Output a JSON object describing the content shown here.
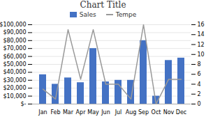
{
  "chart_data": {
    "type": "bar",
    "title": "Chart Title",
    "categories": [
      "Jan",
      "Feb",
      "Mar",
      "Apr",
      "May",
      "Jun",
      "Jul",
      "Aug",
      "Sep",
      "Oct",
      "Nov",
      "Dec"
    ],
    "series": [
      {
        "name": "Sales",
        "type": "bar",
        "color": "#4472C4",
        "values": [
          37000,
          25000,
          33000,
          27000,
          70000,
          28000,
          30000,
          30000,
          80000,
          10000,
          55000,
          58000
        ]
      },
      {
        "name": "Tempe",
        "type": "line",
        "color": "#999999",
        "axis": "y2",
        "values": [
          3,
          1,
          15,
          5,
          15,
          4,
          4,
          1,
          16,
          0,
          5,
          5
        ]
      }
    ],
    "ylim": [
      0,
      100000
    ],
    "yticks": [
      {
        "value": 0,
        "label": "$-"
      },
      {
        "value": 10000,
        "label": "$10,000"
      },
      {
        "value": 20000,
        "label": "$20,000"
      },
      {
        "value": 30000,
        "label": "$30,000"
      },
      {
        "value": 40000,
        "label": "$40,000"
      },
      {
        "value": 50000,
        "label": "$50,000"
      },
      {
        "value": 60000,
        "label": "$60,000"
      },
      {
        "value": 70000,
        "label": "$70,000"
      },
      {
        "value": 80000,
        "label": "$80,000"
      },
      {
        "value": 90000,
        "label": "$90,000"
      },
      {
        "value": 100000,
        "label": "$100,000"
      }
    ],
    "y2lim": [
      0,
      16
    ],
    "y2ticks": [
      0,
      2,
      4,
      6,
      8,
      10,
      12,
      14,
      16
    ],
    "grid": true,
    "legend": "top"
  }
}
